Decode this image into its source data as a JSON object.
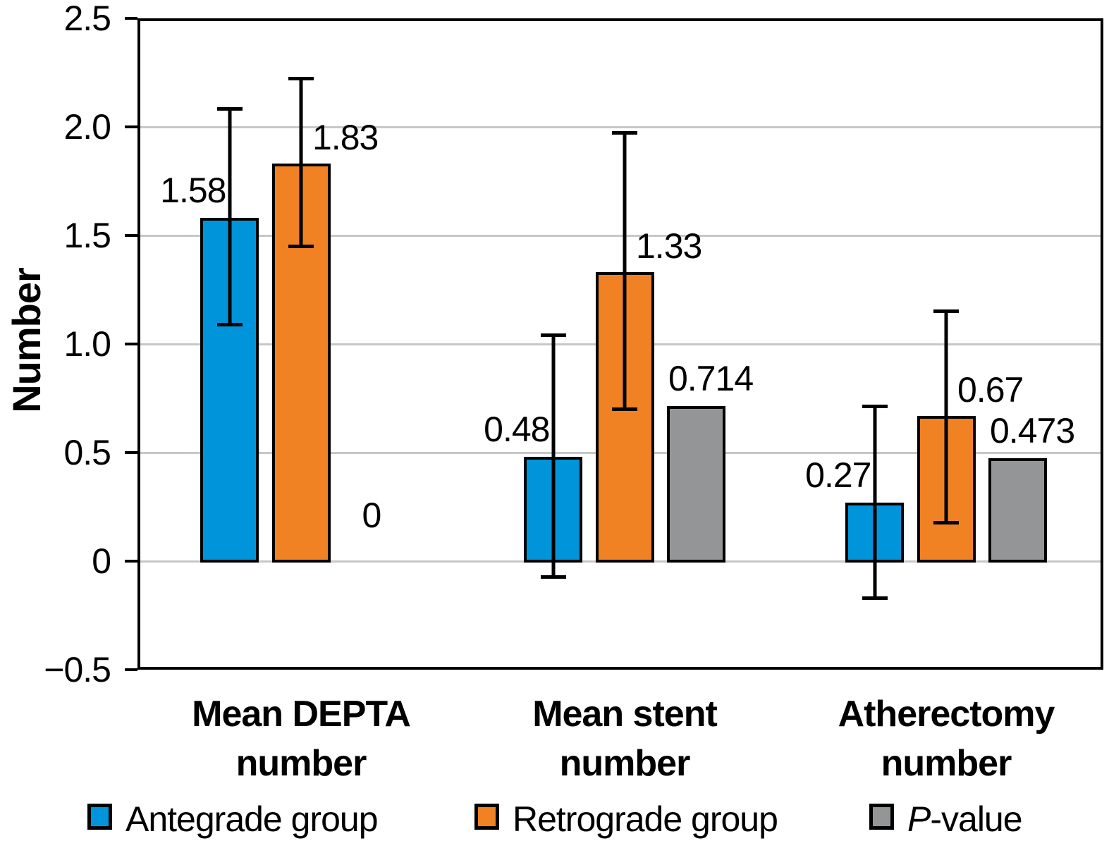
{
  "figure": {
    "background": "#ffffff"
  },
  "chart_data": {
    "type": "bar",
    "title": "",
    "ylabel": "Number",
    "ylim": [
      -0.5,
      2.5
    ],
    "yticks": [
      2.5,
      2.0,
      1.5,
      1.0,
      0.5,
      0,
      -0.5
    ],
    "ytick_labels": [
      "2.5",
      "2.0",
      "1.5",
      "1.0",
      "0.5",
      "0",
      "−0.5"
    ],
    "grid": "horizontal-light-gray",
    "legend_position": "bottom",
    "categories": [
      "Mean DEPTA number",
      "Mean stent number",
      "Atherectomy number"
    ],
    "category_lines": [
      [
        "Mean DEPTA",
        "number"
      ],
      [
        "Mean stent",
        "number"
      ],
      [
        "Atherectomy",
        "number"
      ]
    ],
    "series": [
      {
        "name": "Antegrade group",
        "color": "#0095DB",
        "values": [
          1.58,
          0.48,
          0.27
        ],
        "value_labels": [
          "1.58",
          "0.48",
          "0.27"
        ],
        "error_low": [
          1.08,
          -0.08,
          -0.18
        ],
        "error_high": [
          2.09,
          1.05,
          0.72
        ],
        "bar_hidden": [
          false,
          false,
          false
        ],
        "label_side": "left"
      },
      {
        "name": "Retrograde group",
        "color": "#F08223",
        "values": [
          1.83,
          1.33,
          0.67
        ],
        "value_labels": [
          "1.83",
          "1.33",
          "0.67"
        ],
        "error_low": [
          1.44,
          0.69,
          0.17
        ],
        "error_high": [
          2.23,
          1.98,
          1.16
        ],
        "bar_hidden": [
          false,
          false,
          false
        ],
        "label_side": "right"
      },
      {
        "name": "P-value",
        "color": "#949596",
        "values": [
          0,
          0.714,
          0.473
        ],
        "value_labels": [
          "0",
          "0.714",
          "0.473"
        ],
        "error_low": [
          null,
          null,
          null
        ],
        "error_high": [
          null,
          null,
          null
        ],
        "bar_hidden": [
          true,
          false,
          false
        ],
        "label_side": "over"
      }
    ]
  },
  "colors": {
    "antegrade_blue": "#0095DB",
    "retrograde_orange": "#F08223",
    "pvalue_gray": "#949596",
    "gridline_gray": "#C7C7C7",
    "axis_black": "#000000"
  },
  "legend": {
    "items": [
      {
        "label": "Antegrade group",
        "color": "#0095DB",
        "parts": [
          {
            "text": "Antegrade group",
            "italic": false
          }
        ]
      },
      {
        "label": "Retrograde group",
        "color": "#F08223",
        "parts": [
          {
            "text": "Retrograde group",
            "italic": false
          }
        ]
      },
      {
        "label": "P-value",
        "color": "#949596",
        "parts": [
          {
            "text": "P",
            "italic": true
          },
          {
            "text": "-value",
            "italic": false
          }
        ]
      }
    ]
  }
}
